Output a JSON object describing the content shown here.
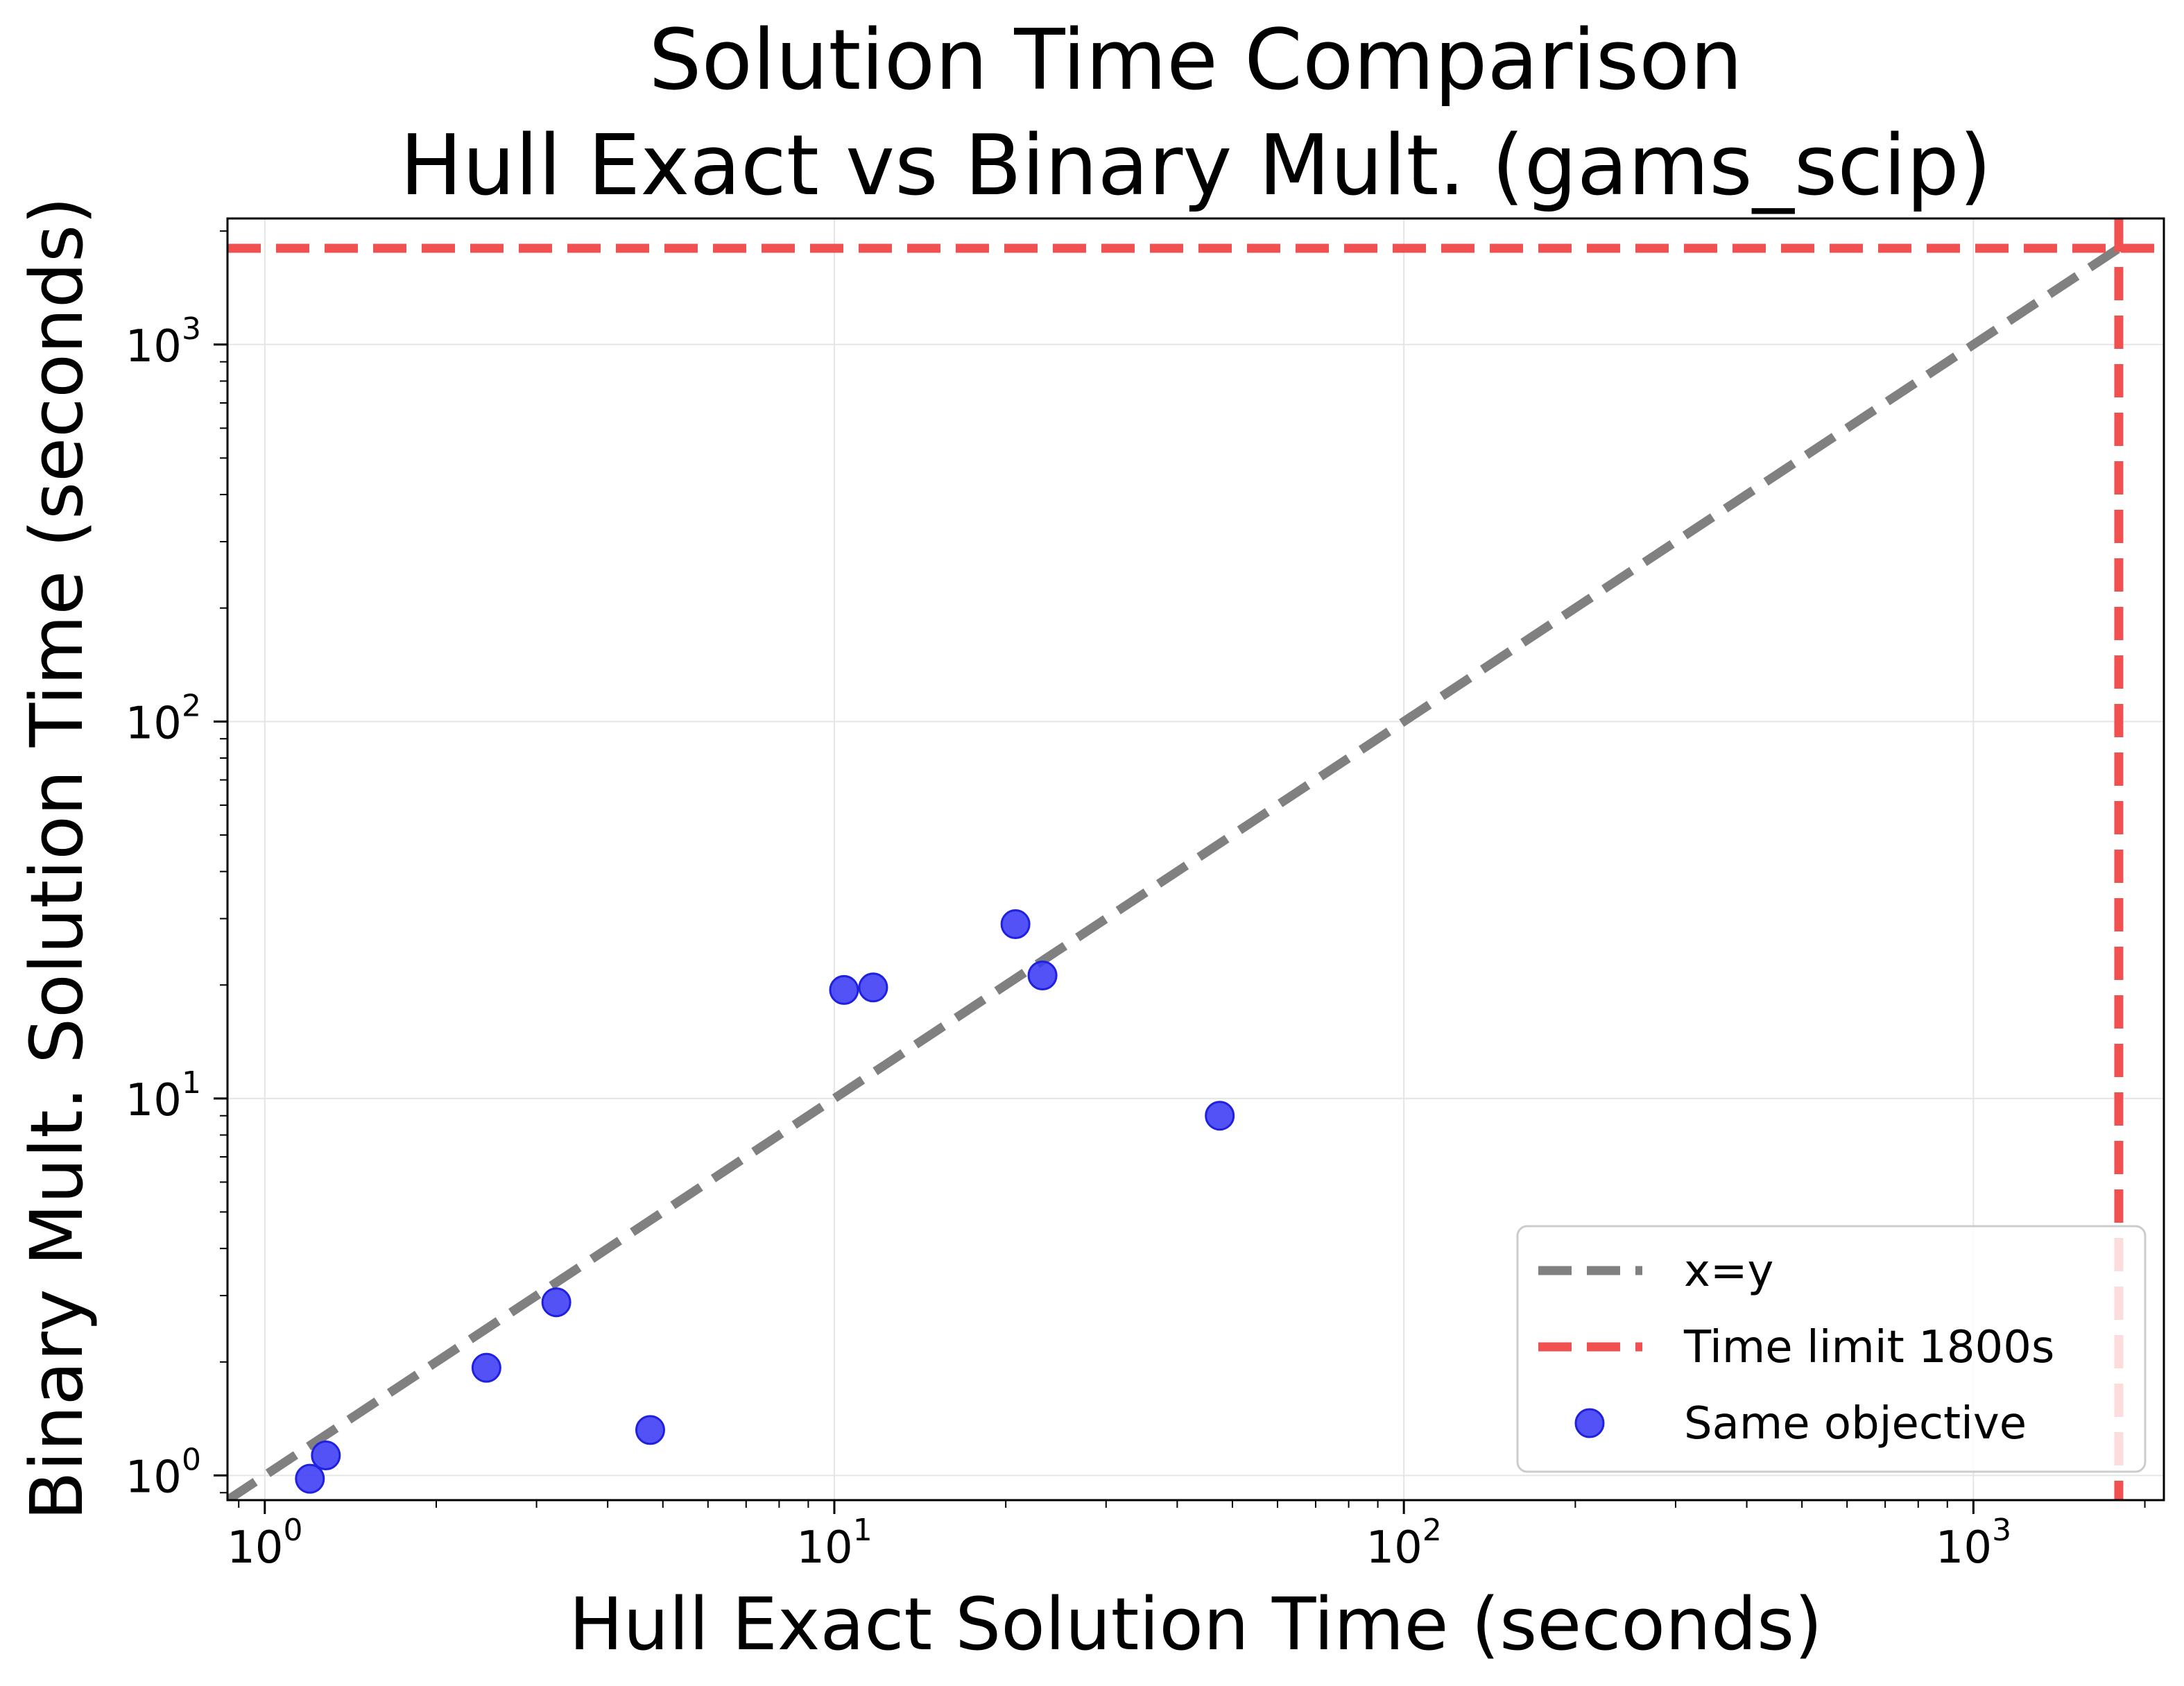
{
  "chart_data": {
    "type": "scatter",
    "title_line1": "Solution Time Comparison",
    "title_line2": "Hull Exact vs Binary Mult. (gams_scip)",
    "xlabel": "Hull Exact Solution Time (seconds)",
    "ylabel": "Binary Mult. Solution Time (seconds)",
    "x_scale": "log",
    "y_scale": "log",
    "xlim": [
      0.86,
      2160
    ],
    "ylim": [
      0.86,
      2160
    ],
    "grid": true,
    "legend_position": "lower right",
    "x_ticks": [
      {
        "value": 1,
        "base": "10",
        "exp": "0"
      },
      {
        "value": 10,
        "base": "10",
        "exp": "1"
      },
      {
        "value": 100,
        "base": "10",
        "exp": "2"
      },
      {
        "value": 1000,
        "base": "10",
        "exp": "3"
      }
    ],
    "y_ticks": [
      {
        "value": 1,
        "base": "10",
        "exp": "0"
      },
      {
        "value": 10,
        "base": "10",
        "exp": "1"
      },
      {
        "value": 100,
        "base": "10",
        "exp": "2"
      },
      {
        "value": 1000,
        "base": "10",
        "exp": "3"
      }
    ],
    "reference_lines": [
      {
        "name": "x=y",
        "type": "diagonal",
        "color": "#808080",
        "style": "dashed"
      },
      {
        "name": "Time limit 1800s",
        "value": 1800,
        "color": "#f05050",
        "style": "dashed"
      }
    ],
    "series": [
      {
        "name": "Same objective",
        "color": "#3a3af5",
        "edge_color": "#2020e0",
        "points": [
          {
            "x": 1.2,
            "y": 0.98
          },
          {
            "x": 1.28,
            "y": 1.13
          },
          {
            "x": 2.45,
            "y": 1.93
          },
          {
            "x": 3.25,
            "y": 2.88
          },
          {
            "x": 4.75,
            "y": 1.32
          },
          {
            "x": 10.4,
            "y": 19.4
          },
          {
            "x": 11.7,
            "y": 19.7
          },
          {
            "x": 20.8,
            "y": 29.0
          },
          {
            "x": 23.2,
            "y": 21.2
          },
          {
            "x": 47.5,
            "y": 9.0
          }
        ]
      }
    ],
    "legend": [
      {
        "label": "x=y",
        "kind": "line",
        "color": "#808080"
      },
      {
        "label": "Time limit 1800s",
        "kind": "line",
        "color": "#f05050"
      },
      {
        "label": "Same objective",
        "kind": "marker",
        "color": "#3a3af5"
      }
    ]
  }
}
